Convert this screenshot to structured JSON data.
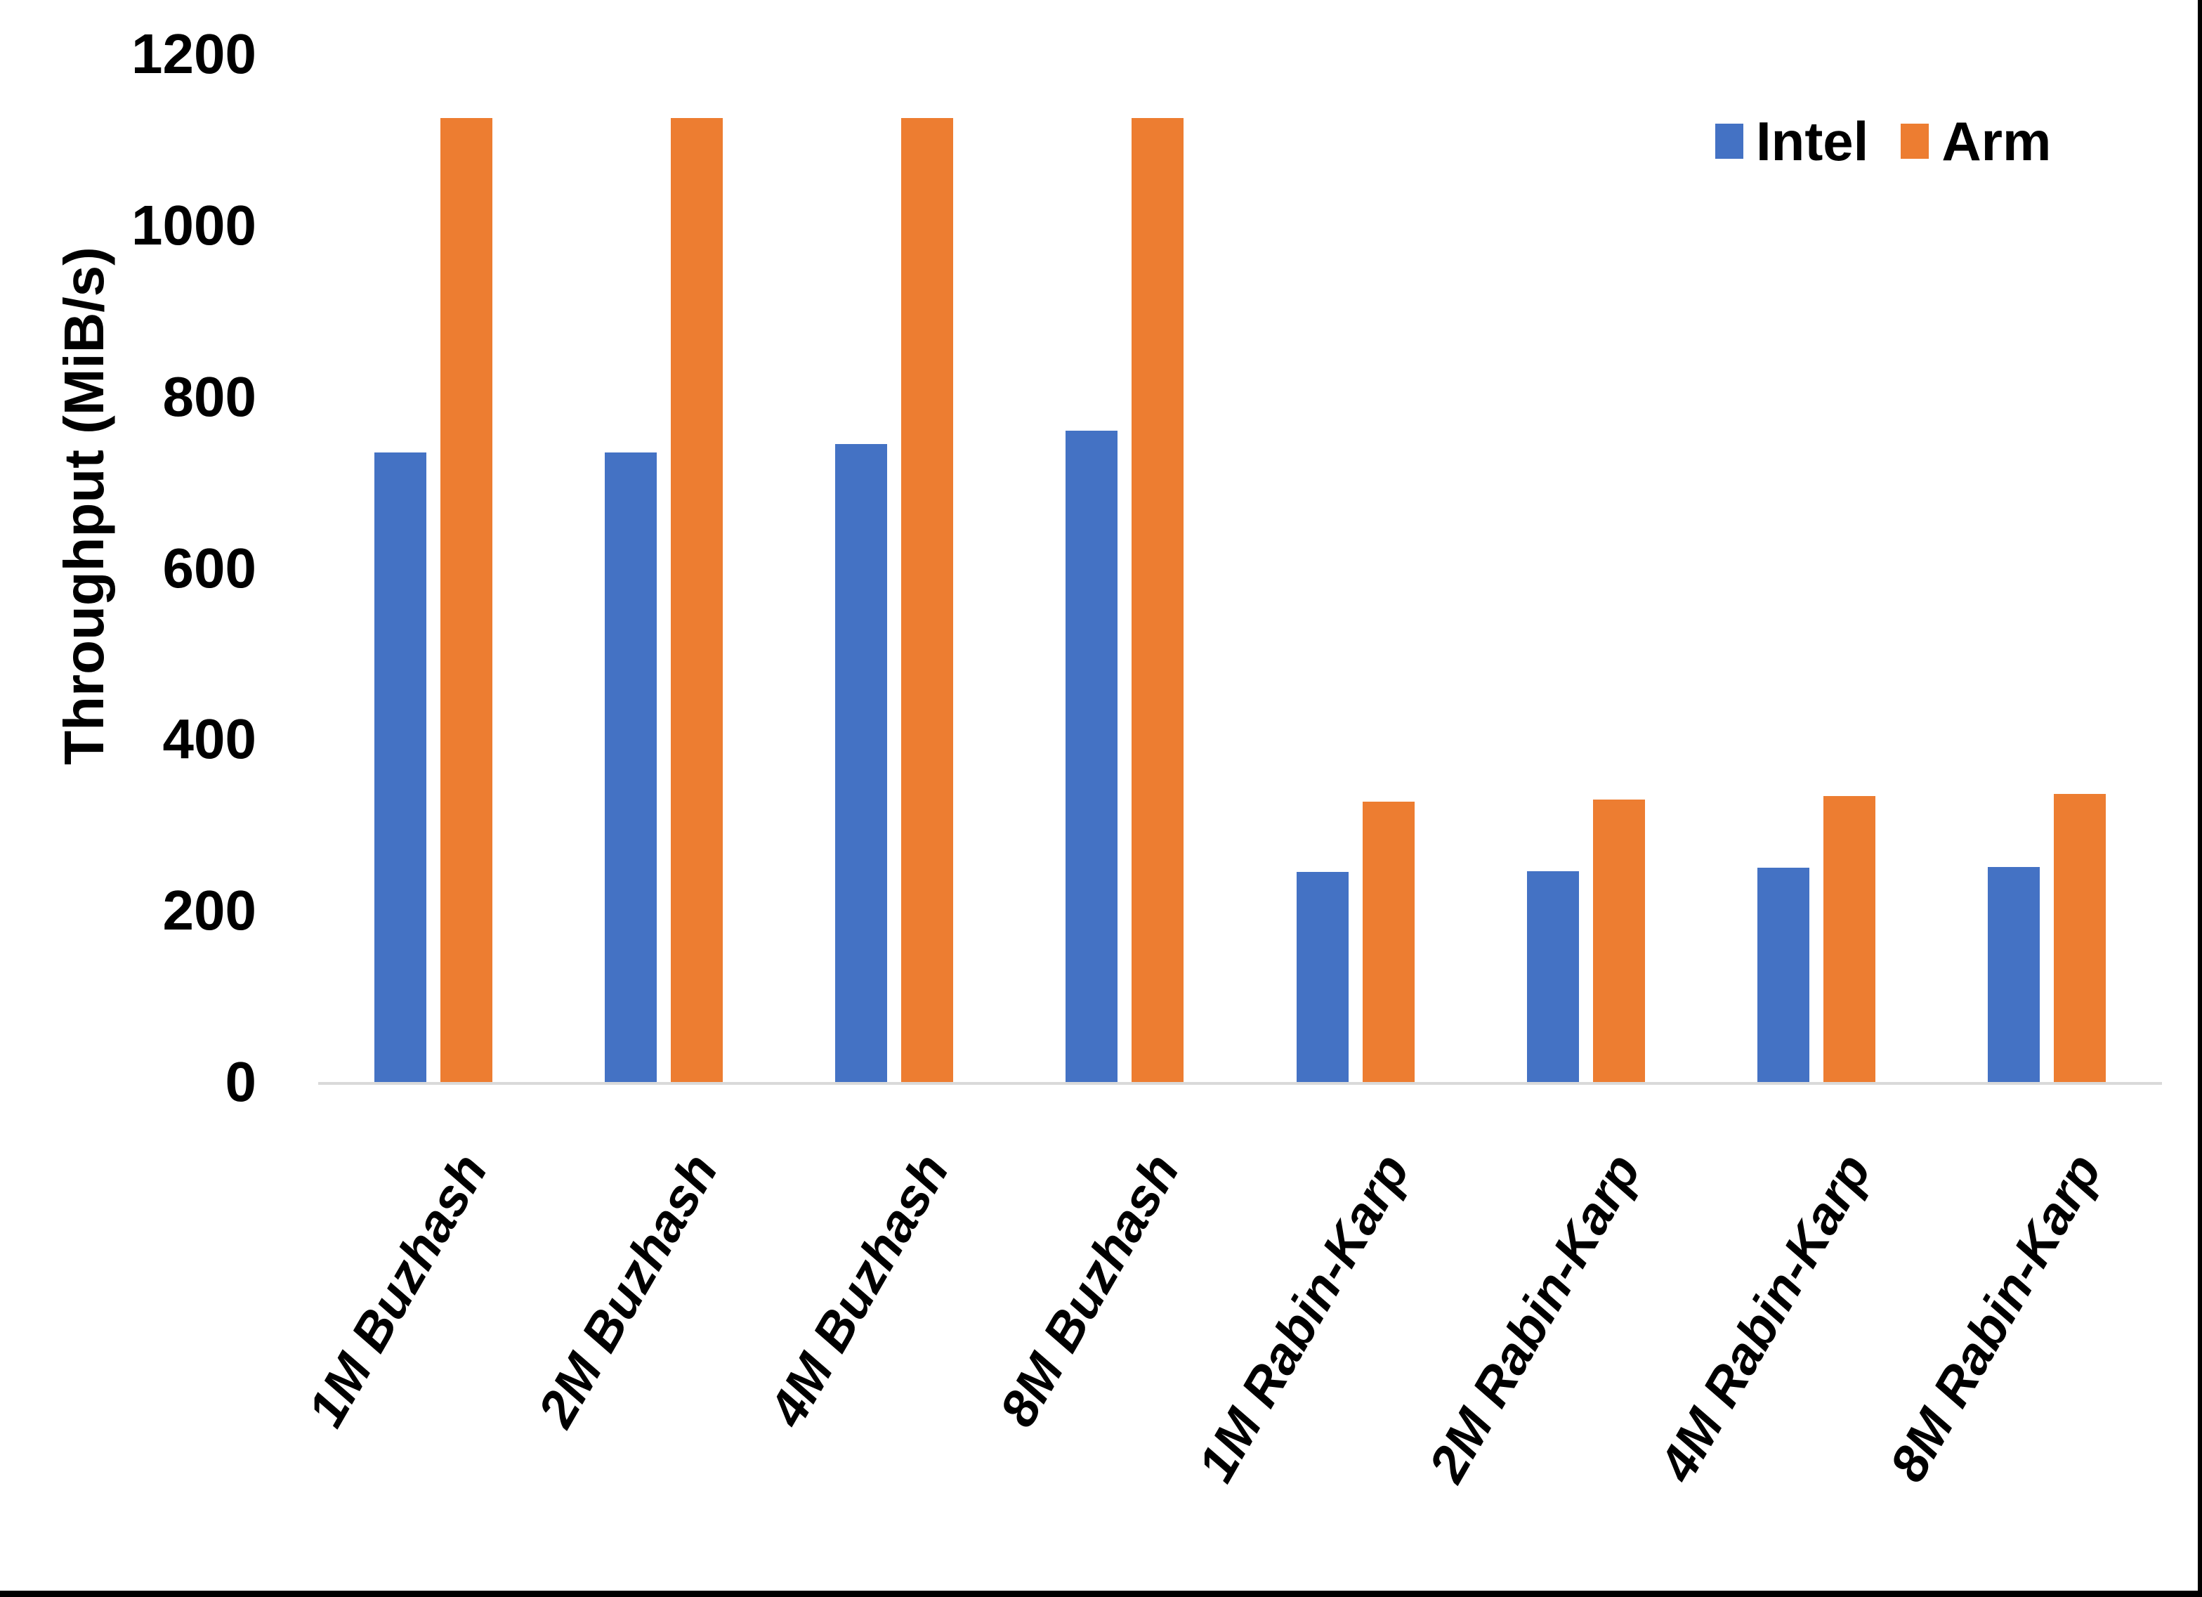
{
  "chart_data": {
    "type": "bar",
    "title": "",
    "xlabel": "",
    "ylabel": "Throughput (MiB/s)",
    "ylim": [
      0,
      1200
    ],
    "yticks": [
      0,
      200,
      400,
      600,
      800,
      1000,
      1200
    ],
    "grid": false,
    "legend_position": "top-right",
    "categories": [
      "1M Buzhash",
      "2M Buzhash",
      "4M Buzhash",
      "8M Buzhash",
      "1M Rabin-Karp",
      "2M Rabin-Karp",
      "4M Rabin-Karp",
      "8M Rabin-Karp"
    ],
    "series": [
      {
        "name": "Intel",
        "color": "#4472C4",
        "values": [
          735,
          735,
          745,
          760,
          245,
          246,
          250,
          251
        ]
      },
      {
        "name": "Arm",
        "color": "#ED7D31",
        "values": [
          1125,
          1125,
          1125,
          1125,
          327,
          330,
          334,
          336
        ]
      }
    ]
  },
  "colors": {
    "background": "#FFFFFF",
    "axis_line": "#D9D9D9",
    "text": "#000000",
    "window_edge": "#000000"
  }
}
